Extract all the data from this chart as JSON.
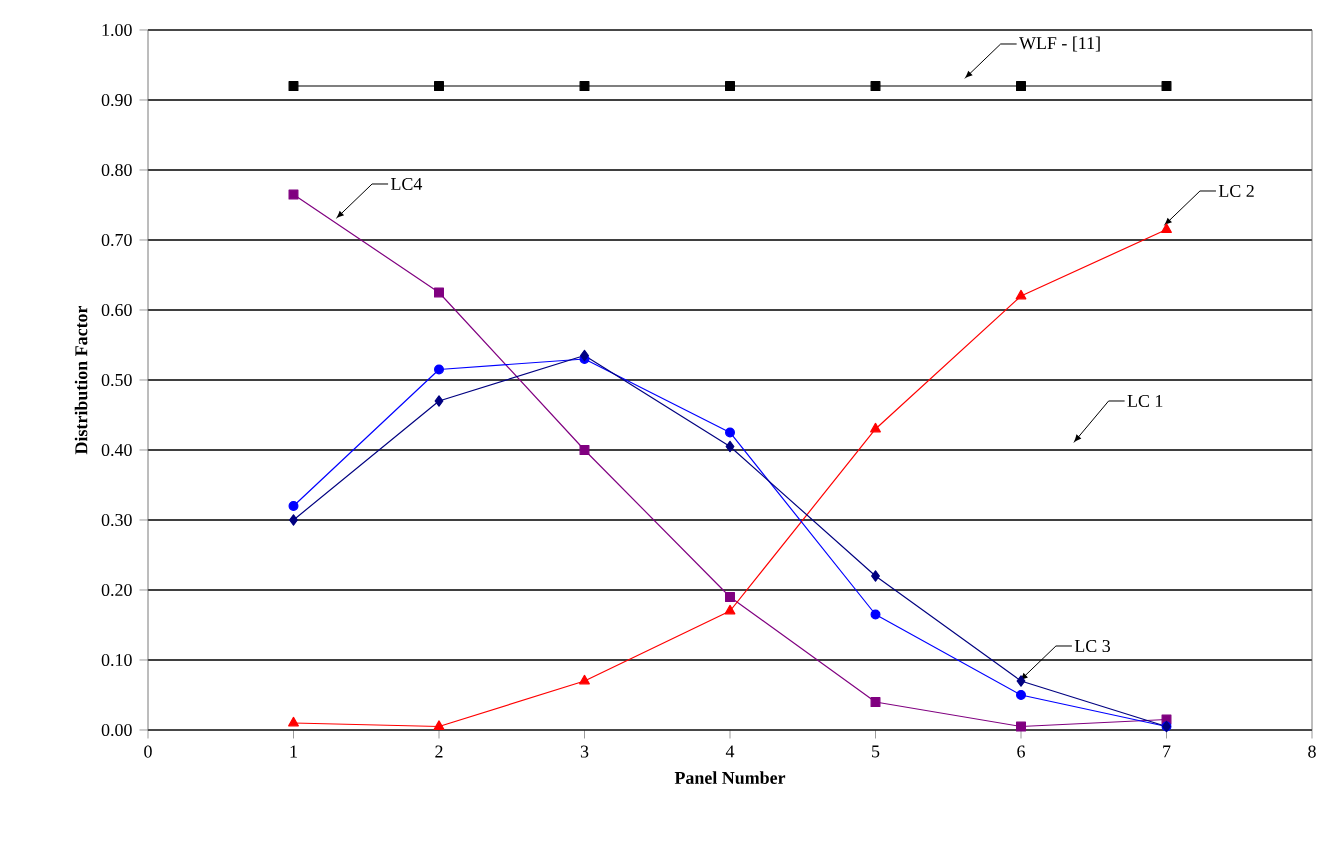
{
  "chart_data": {
    "type": "line",
    "xlabel": "Panel Number",
    "ylabel": "Distribution Factor",
    "x": [
      1,
      2,
      3,
      4,
      5,
      6,
      7
    ],
    "series": [
      {
        "color": "#000000",
        "marker": "square",
        "values": [
          0.92,
          0.92,
          0.92,
          0.92,
          0.92,
          0.92,
          0.92
        ]
      },
      {
        "color": "#800080",
        "marker": "square",
        "values": [
          0.765,
          0.625,
          0.4,
          0.19,
          0.04,
          0.005,
          0.015
        ]
      },
      {
        "color": "#ff0000",
        "marker": "triangle",
        "values": [
          0.01,
          0.005,
          0.07,
          0.17,
          0.43,
          0.62,
          0.715
        ]
      },
      {
        "color": "#0000ff",
        "marker": "circle",
        "values": [
          0.32,
          0.515,
          0.53,
          0.425,
          0.165,
          0.05,
          0.005
        ]
      },
      {
        "color": "#000080",
        "marker": "diamond",
        "values": [
          0.3,
          0.47,
          0.535,
          0.405,
          0.22,
          0.07,
          0.005
        ]
      }
    ],
    "annotations": [
      {
        "text": "WLF - [11]",
        "x": 5.61,
        "y": 0.93
      },
      {
        "text": "LC4",
        "x": 1.29,
        "y": 0.73
      },
      {
        "text": "LC 2",
        "x": 6.98,
        "y": 0.72
      },
      "LC 1",
      {
        "text": "LC 3",
        "x": 5.99,
        "y": 0.07
      }
    ],
    "xlim": [
      0,
      8
    ],
    "xticks": [
      0,
      1,
      2,
      3,
      4,
      5,
      6,
      7,
      8
    ],
    "ylim": [
      0,
      1
    ],
    "yticks": [
      {
        "value": 0,
        "label": "0.00"
      },
      {
        "value": 0.1,
        "label": "0.10"
      },
      {
        "value": 0.2,
        "label": "0.20"
      },
      {
        "value": 0.3,
        "label": "0.30"
      },
      {
        "value": 0.4,
        "label": "0.40"
      },
      {
        "value": 0.5,
        "label": "0.50"
      },
      {
        "value": 0.6,
        "label": "0.60"
      },
      {
        "value": 0.7,
        "label": "0.70"
      },
      {
        "value": 0.8,
        "label": "0.80"
      },
      {
        "value": 0.9,
        "label": "0.90"
      },
      {
        "value": 1,
        "label": "1.00"
      }
    ],
    "grid": "y"
  }
}
